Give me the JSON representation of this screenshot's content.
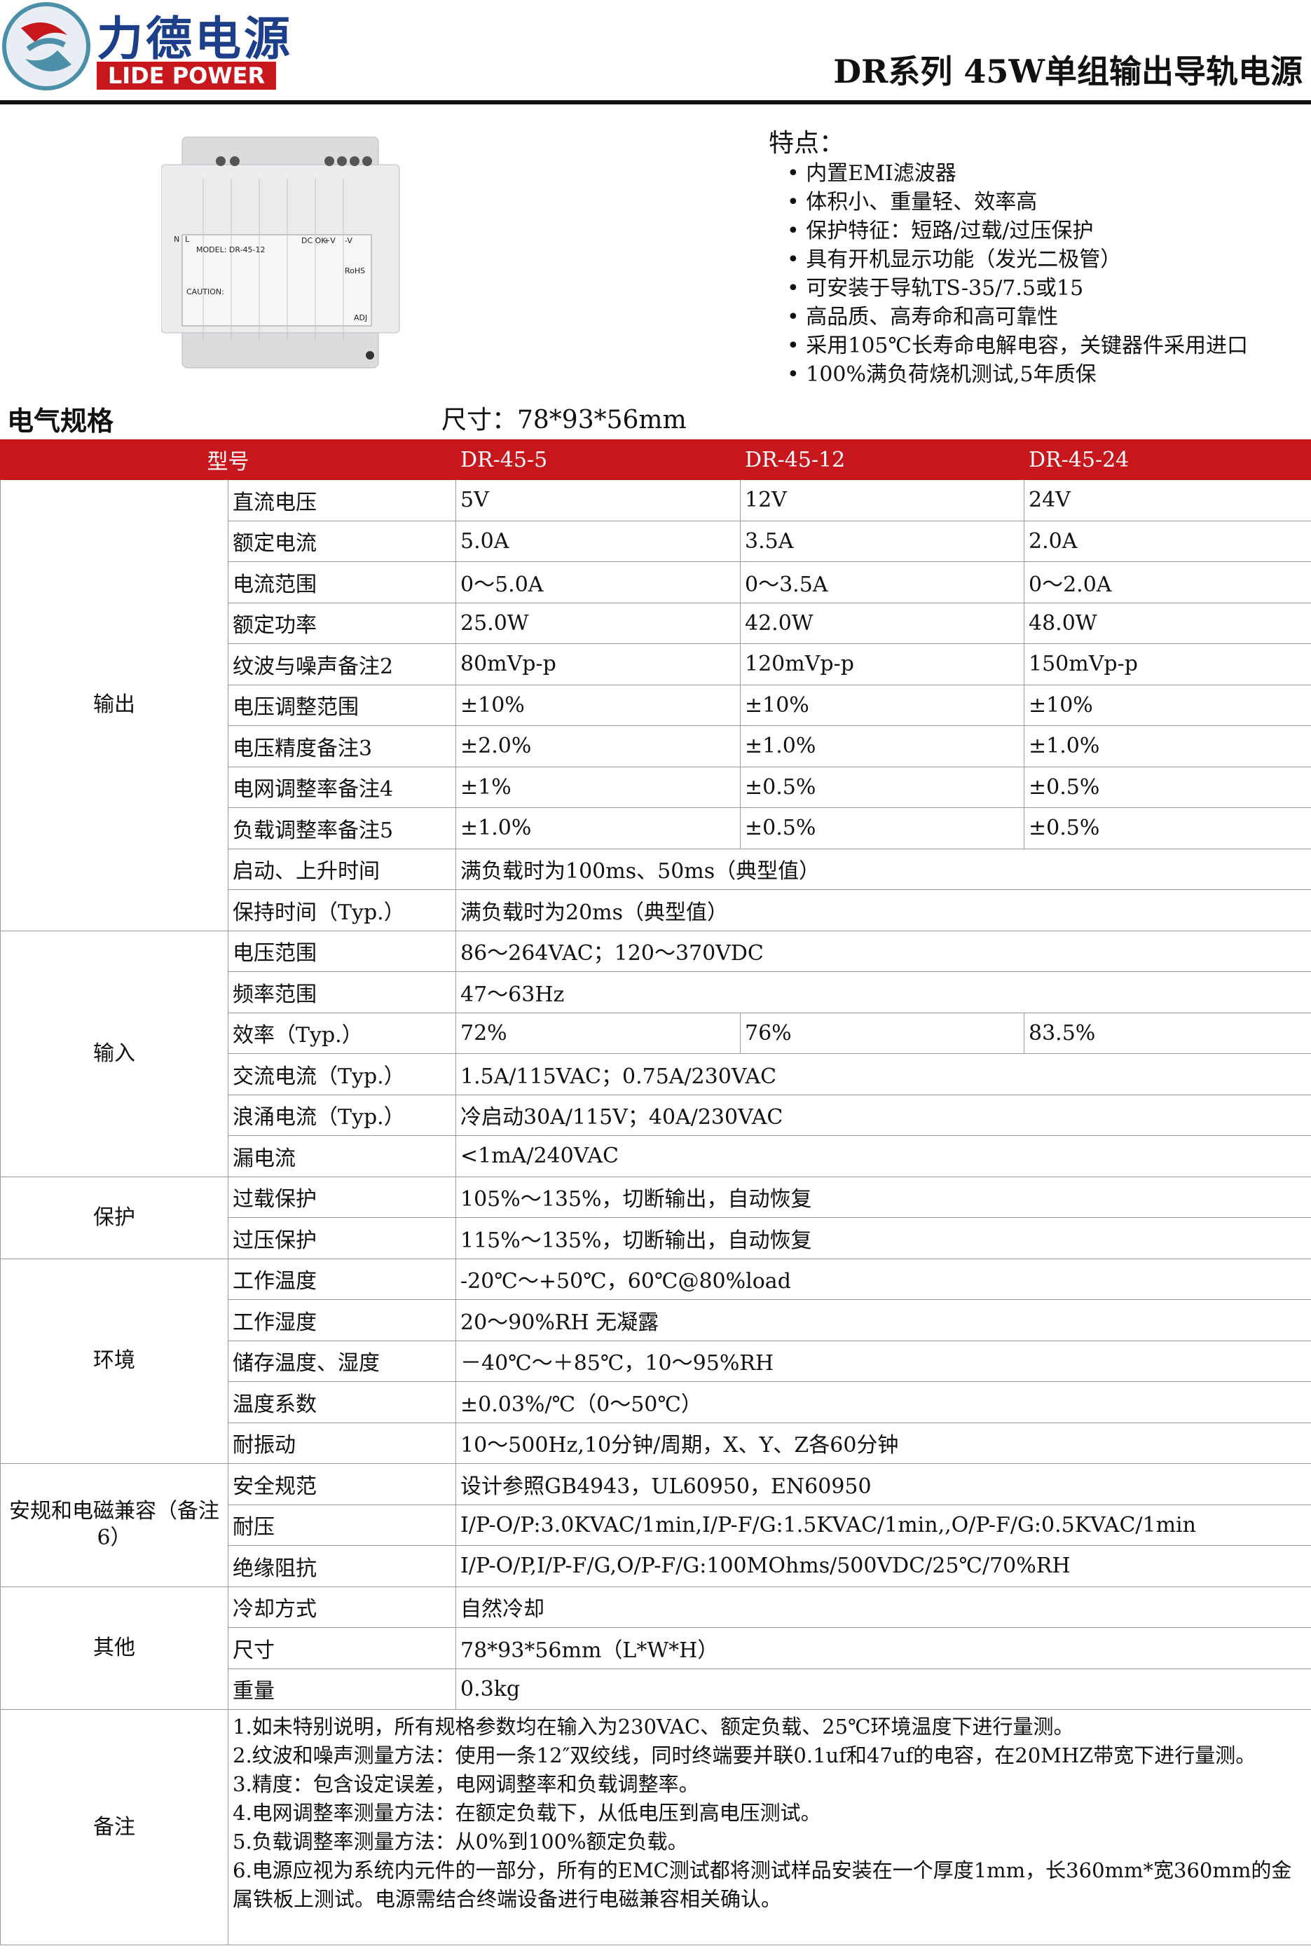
{
  "header": {
    "logo_cn": "力德电源",
    "logo_en": "LIDE POWER",
    "title": "DR系列 45W单组输出导轨电源"
  },
  "product": {
    "labels": [
      "N",
      "L",
      "DC OK",
      "+V",
      "-V",
      "MODEL: DR-45-12",
      "CAUTION:",
      "RoHS",
      "ADJ"
    ]
  },
  "features": {
    "title": "特点：",
    "items": [
      "• 内置EMI滤波器",
      "• 体积小、重量轻、效率高",
      "• 保护特征：短路/过载/过压保护",
      "• 具有开机显示功能（发光二极管）",
      "• 可安装于导轨TS-35/7.5或15",
      "• 高品质、高寿命和高可靠性",
      "• 采用105℃长寿命电解电容，关键器件采用进口",
      "• 100%满负荷烧机测试,5年质保"
    ]
  },
  "section": {
    "title": "电气规格",
    "size": "尺寸：78*93*56mm"
  },
  "table": {
    "header": [
      "型号",
      "DR-45-5",
      "DR-45-12",
      "DR-45-24"
    ],
    "groups": [
      {
        "name": "输出",
        "rows": [
          [
            "直流电压",
            "5V",
            "12V",
            "24V"
          ],
          [
            "额定电流",
            "5.0A",
            "3.5A",
            "2.0A"
          ],
          [
            "电流范围",
            "0～5.0A",
            "0～3.5A",
            "0～2.0A"
          ],
          [
            "额定功率",
            "25.0W",
            "42.0W",
            "48.0W"
          ],
          [
            "纹波与噪声备注2",
            "80mVp-p",
            "120mVp-p",
            "150mVp-p"
          ],
          [
            "电压调整范围",
            "±10%",
            "±10%",
            "±10%"
          ],
          [
            "电压精度备注3",
            "±2.0%",
            "±1.0%",
            "±1.0%"
          ],
          [
            "电网调整率备注4",
            "±1%",
            "±0.5%",
            "±0.5%"
          ],
          [
            "负载调整率备注5",
            "±1.0%",
            "±0.5%",
            "±0.5%"
          ],
          [
            "启动、上升时间",
            "满负载时为100ms、50ms（典型值）"
          ],
          [
            "保持时间（Typ.）",
            "满负载时为20ms（典型值）"
          ]
        ]
      },
      {
        "name": "输入",
        "rows": [
          [
            "电压范围",
            "86～264VAC；120～370VDC"
          ],
          [
            "频率范围",
            "47～63Hz"
          ],
          [
            "效率（Typ.）",
            "72%",
            "76%",
            "83.5%"
          ],
          [
            "交流电流（Typ.）",
            "1.5A/115VAC；0.75A/230VAC"
          ],
          [
            "浪涌电流（Typ.）",
            "冷启动30A/115V；40A/230VAC"
          ],
          [
            "漏电流",
            "<1mA/240VAC"
          ]
        ]
      },
      {
        "name": "保护",
        "rows": [
          [
            "过载保护",
            "105%～135%，切断输出，自动恢复"
          ],
          [
            "过压保护",
            "115%～135%，切断输出，自动恢复"
          ]
        ]
      },
      {
        "name": "环境",
        "rows": [
          [
            "工作温度",
            "-20℃～+50℃，60℃@80%load"
          ],
          [
            "工作湿度",
            "20～90%RH 无凝露"
          ],
          [
            "储存温度、湿度",
            "－40℃～＋85℃，10～95%RH"
          ],
          [
            "温度系数",
            "±0.03%/℃（0～50℃）"
          ],
          [
            "耐振动",
            "10～500Hz,10分钟/周期，X、Y、Z各60分钟"
          ]
        ]
      },
      {
        "name": "安规和电磁兼容（备注6）",
        "rows": [
          [
            "安全规范",
            "设计参照GB4943，UL60950，EN60950"
          ],
          [
            "耐压",
            "I/P-O/P:3.0KVAC/1min,I/P-F/G:1.5KVAC/1min,,O/P-F/G:0.5KVAC/1min"
          ],
          [
            "绝缘阻抗",
            "I/P-O/P,I/P-F/G,O/P-F/G:100MOhms/500VDC/25℃/70%RH"
          ]
        ]
      },
      {
        "name": "其他",
        "rows": [
          [
            "冷却方式",
            "自然冷却"
          ],
          [
            "尺寸",
            "78*93*56mm（L*W*H）"
          ],
          [
            "重量",
            "0.3kg"
          ]
        ]
      }
    ],
    "notes": {
      "label": "备注",
      "lines": [
        "1.如未特别说明，所有规格参数均在输入为230VAC、额定负载、25℃环境温度下进行量测。",
        "2.纹波和噪声测量方法：使用一条12″双绞线，同时终端要并联0.1uf和47uf的电容，在20MHZ带宽下进行量测。",
        "3.精度：包含设定误差，电网调整率和负载调整率。",
        "4.电网调整率测量方法：在额定负载下，从低电压到高电压测试。",
        "5.负载调整率测量方法：从0%到100%额定负载。",
        "6.电源应视为系统内元件的一部分，所有的EMC测试都将测试样品安装在一个厚度1mm，长360mm*宽360mm的金属铁板上测试。电源需结合终端设备进行电磁兼容相关确认。"
      ]
    }
  }
}
